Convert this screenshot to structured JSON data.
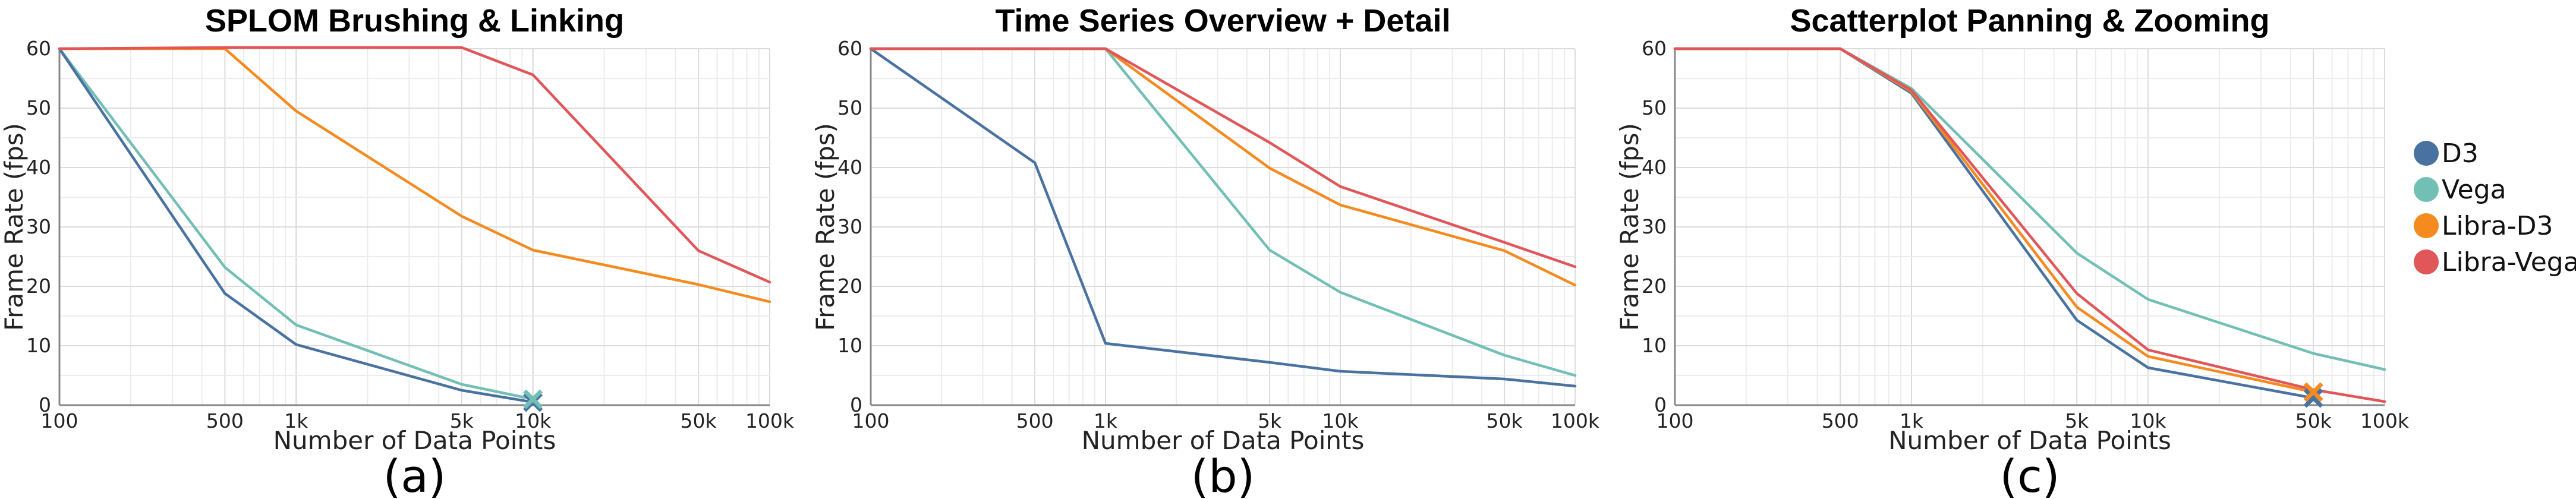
{
  "colors": {
    "D3": "#4a72a1",
    "Vega": "#72bfb5",
    "Libra-D3": "#f58a1f",
    "Libra-Vega": "#e15659"
  },
  "legend": {
    "items": [
      "D3",
      "Vega",
      "Libra-D3",
      "Libra-Vega"
    ]
  },
  "chart_data": [
    {
      "type": "line",
      "title": "SPLOM Brushing & Linking",
      "panel_label": "(a)",
      "xlabel": "Number of Data Points",
      "ylabel": "Frame Rate (fps)",
      "xscale": "log",
      "xlim": [
        100,
        100000
      ],
      "ylim": [
        0,
        60
      ],
      "xticks": [
        100,
        500,
        1000,
        5000,
        10000,
        50000,
        100000
      ],
      "xtick_labels": [
        "100",
        "500",
        "1k",
        "5k",
        "10k",
        "50k",
        "100k"
      ],
      "yticks": [
        0,
        10,
        20,
        30,
        40,
        50,
        60
      ],
      "ytick_labels": [
        "0",
        "10",
        "20",
        "30",
        "40",
        "50",
        "60"
      ],
      "grid": true,
      "series": [
        {
          "name": "D3",
          "x": [
            100,
            500,
            1000,
            5000,
            10000
          ],
          "y": [
            60,
            18.8,
            10.2,
            2.5,
            0.5
          ]
        },
        {
          "name": "Vega",
          "x": [
            100,
            500,
            1000,
            5000,
            10000
          ],
          "y": [
            60,
            23.2,
            13.5,
            3.5,
            1.0
          ]
        },
        {
          "name": "Libra-D3",
          "x": [
            100,
            500,
            1000,
            5000,
            10000,
            50000,
            100000
          ],
          "y": [
            60,
            60,
            49.5,
            31.8,
            26.1,
            20.3,
            17.4
          ]
        },
        {
          "name": "Libra-Vega",
          "x": [
            100,
            500,
            1000,
            5000,
            10000,
            50000,
            100000
          ],
          "y": [
            60,
            60.2,
            60.2,
            60.2,
            55.6,
            26.0,
            20.7
          ]
        }
      ],
      "markers": [
        {
          "series": "D3",
          "x": 10000,
          "y": 0.5,
          "symbol": "x"
        },
        {
          "series": "Vega",
          "x": 10000,
          "y": 1.0,
          "symbol": "x"
        }
      ]
    },
    {
      "type": "line",
      "title": "Time Series Overview + Detail",
      "panel_label": "(b)",
      "xlabel": "Number of Data Points",
      "ylabel": "Frame Rate (fps)",
      "xscale": "log",
      "xlim": [
        100,
        100000
      ],
      "ylim": [
        0,
        60
      ],
      "xticks": [
        100,
        500,
        1000,
        5000,
        10000,
        50000,
        100000
      ],
      "xtick_labels": [
        "100",
        "500",
        "1k",
        "5k",
        "10k",
        "50k",
        "100k"
      ],
      "yticks": [
        0,
        10,
        20,
        30,
        40,
        50,
        60
      ],
      "ytick_labels": [
        "0",
        "10",
        "20",
        "30",
        "40",
        "50",
        "60"
      ],
      "grid": true,
      "series": [
        {
          "name": "D3",
          "x": [
            100,
            500,
            1000,
            5000,
            10000,
            50000,
            100000
          ],
          "y": [
            60,
            40.8,
            10.4,
            7.2,
            5.7,
            4.4,
            3.2
          ]
        },
        {
          "name": "Vega",
          "x": [
            100,
            500,
            1000,
            5000,
            10000,
            50000,
            100000
          ],
          "y": [
            60,
            60,
            60,
            26.1,
            19.0,
            8.4,
            5.0
          ]
        },
        {
          "name": "Libra-D3",
          "x": [
            100,
            500,
            1000,
            5000,
            10000,
            50000,
            100000
          ],
          "y": [
            60,
            60,
            60,
            39.9,
            33.7,
            26.0,
            20.2
          ]
        },
        {
          "name": "Libra-Vega",
          "x": [
            100,
            500,
            1000,
            5000,
            10000,
            50000,
            100000
          ],
          "y": [
            60,
            60,
            60,
            44.2,
            36.8,
            27.4,
            23.3
          ]
        }
      ],
      "markers": []
    },
    {
      "type": "line",
      "title": "Scatterplot Panning & Zooming",
      "panel_label": "(c)",
      "xlabel": "Number of Data Points",
      "ylabel": "Frame Rate (fps)",
      "xscale": "log",
      "xlim": [
        100,
        100000
      ],
      "ylim": [
        0,
        60
      ],
      "xticks": [
        100,
        500,
        1000,
        5000,
        10000,
        50000,
        100000
      ],
      "xtick_labels": [
        "100",
        "500",
        "1k",
        "5k",
        "10k",
        "50k",
        "100k"
      ],
      "yticks": [
        0,
        10,
        20,
        30,
        40,
        50,
        60
      ],
      "ytick_labels": [
        "0",
        "10",
        "20",
        "30",
        "40",
        "50",
        "60"
      ],
      "grid": true,
      "series": [
        {
          "name": "D3",
          "x": [
            100,
            500,
            1000,
            5000,
            10000,
            50000
          ],
          "y": [
            60,
            60,
            52.5,
            14.3,
            6.3,
            1.2
          ]
        },
        {
          "name": "Vega",
          "x": [
            100,
            500,
            1000,
            5000,
            10000,
            50000,
            100000
          ],
          "y": [
            60,
            60,
            53.3,
            25.6,
            17.8,
            8.7,
            6.0
          ]
        },
        {
          "name": "Libra-D3",
          "x": [
            100,
            500,
            1000,
            5000,
            10000,
            50000
          ],
          "y": [
            60,
            60,
            52.8,
            16.5,
            8.2,
            2.2
          ]
        },
        {
          "name": "Libra-Vega",
          "x": [
            100,
            500,
            1000,
            5000,
            10000,
            50000,
            100000
          ],
          "y": [
            60,
            60,
            53.0,
            18.8,
            9.3,
            2.6,
            0.6
          ]
        }
      ],
      "markers": [
        {
          "series": "D3",
          "x": 50000,
          "y": 1.2,
          "symbol": "x"
        },
        {
          "series": "Libra-D3",
          "x": 50000,
          "y": 2.2,
          "symbol": "x"
        }
      ]
    }
  ]
}
